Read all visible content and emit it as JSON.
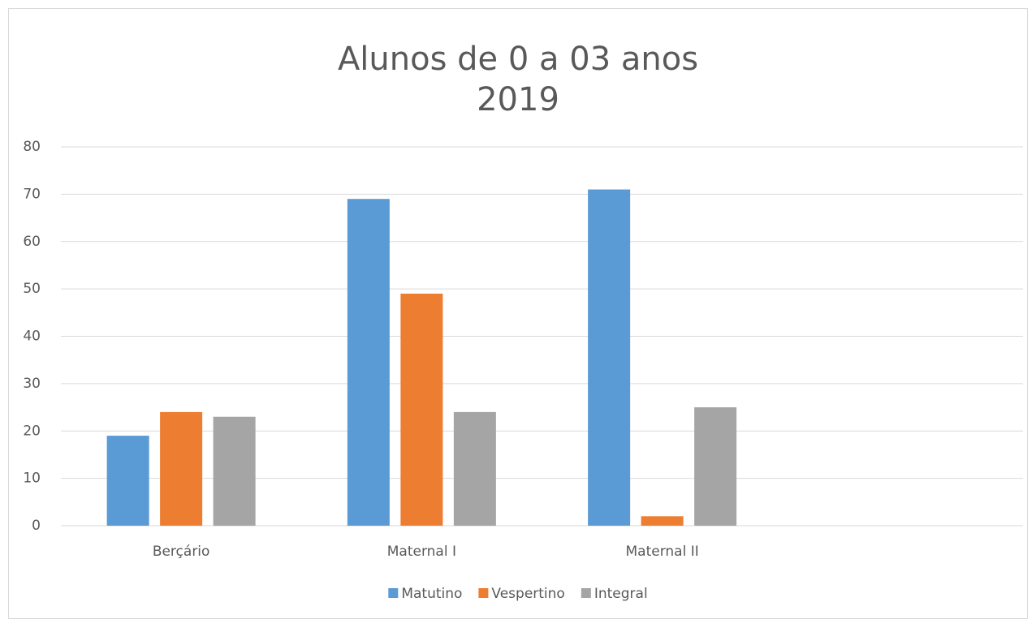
{
  "chart_data": {
    "type": "bar",
    "title": [
      "Alunos de 0 a 03 anos",
      "2019"
    ],
    "categories": [
      "Berçário",
      "Maternal I",
      "Maternal II",
      null
    ],
    "series": [
      {
        "name": "Matutino",
        "color": "#5b9bd5",
        "values": [
          19,
          69,
          71,
          null
        ]
      },
      {
        "name": "Vespertino",
        "color": "#ed7d31",
        "values": [
          24,
          49,
          2,
          null
        ]
      },
      {
        "name": "Integral",
        "color": "#a5a5a5",
        "values": [
          23,
          24,
          25,
          null
        ]
      }
    ],
    "ylim": [
      0,
      80
    ],
    "yticks": [
      0,
      10,
      20,
      30,
      40,
      50,
      60,
      70,
      80
    ],
    "grid": true,
    "legend": "bottom"
  }
}
